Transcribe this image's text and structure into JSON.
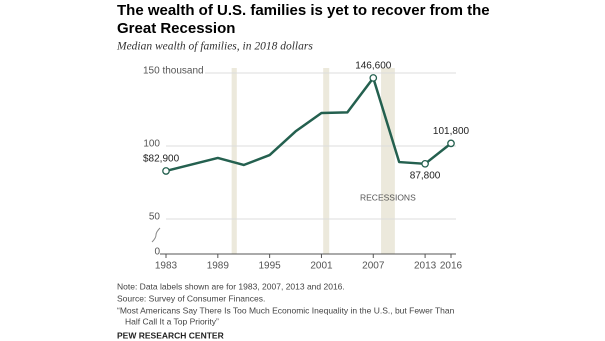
{
  "chart_data": {
    "type": "line",
    "title": [
      "The wealth of U.S. families is yet to recover from the",
      "Great Recession"
    ],
    "subtitle": "Median wealth of families, in 2018 dollars",
    "x": [
      1983,
      1989,
      1992,
      1995,
      1998,
      2001,
      2004,
      2007,
      2010,
      2013,
      2016
    ],
    "series": [
      {
        "name": "Median wealth",
        "color": "#24604f",
        "values": [
          82.9,
          91.8,
          87,
          93.8,
          110,
          122.6,
          123,
          146.6,
          89,
          87.8,
          101.8
        ],
        "value_labels": [
          "$82,900",
          null,
          null,
          null,
          null,
          null,
          null,
          "146,600",
          null,
          "87,800",
          "101,800"
        ]
      }
    ],
    "xlim": [
      1983,
      2016
    ],
    "xticks": [
      1983,
      1989,
      1995,
      2001,
      2007,
      2013,
      2016
    ],
    "ylim": [
      0,
      150
    ],
    "yticks": [
      0,
      50,
      100,
      {
        "value": 150,
        "label": "150 thousand"
      }
    ],
    "grid": true,
    "recessions": [
      [
        1990.6,
        1991.2
      ],
      [
        2001.2,
        2001.9
      ],
      [
        2007.9,
        2009.5
      ]
    ],
    "recession_label": "RECESSIONS",
    "recession_color": "#ece9dc",
    "notes": [
      "Note: Data labels shown are for 1983, 2007, 2013 and 2016.",
      "Source: Survey of Consumer Finances.",
      "“Most Americans Say There Is Too Much Economic Inequality in the U.S., but Fewer Than",
      "Half Call It a Top Priority”"
    ],
    "credit": "PEW RESEARCH CENTER"
  }
}
